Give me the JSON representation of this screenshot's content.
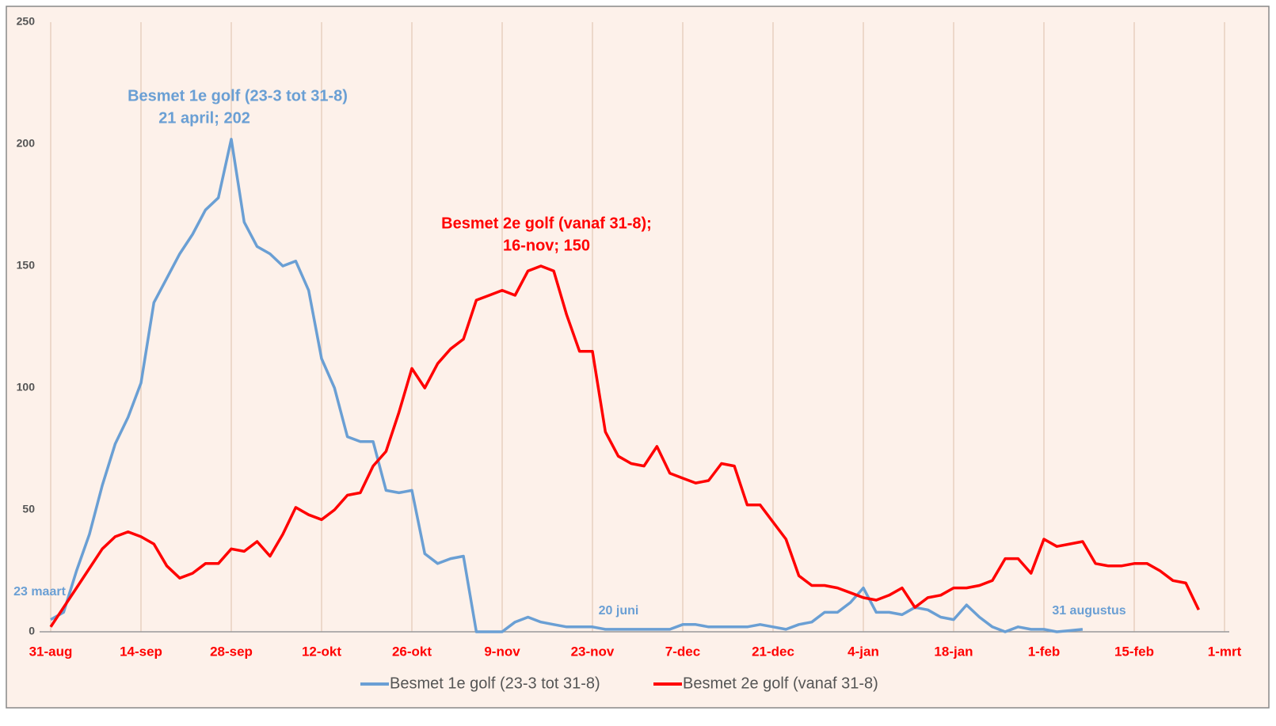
{
  "chart_data": {
    "type": "line",
    "categories": [
      "31-aug",
      null,
      null,
      null,
      null,
      null,
      null,
      "14-sep",
      null,
      null,
      null,
      null,
      null,
      null,
      "28-sep",
      null,
      null,
      null,
      null,
      null,
      null,
      "12-okt",
      null,
      null,
      null,
      null,
      null,
      null,
      "26-okt",
      null,
      null,
      null,
      null,
      null,
      null,
      "9-nov",
      null,
      null,
      null,
      null,
      null,
      null,
      "23-nov",
      null,
      null,
      null,
      null,
      null,
      null,
      "7-dec",
      null,
      null,
      null,
      null,
      null,
      null,
      "21-dec",
      null,
      null,
      null,
      null,
      null,
      null,
      "4-jan",
      null,
      null,
      null,
      null,
      null,
      null,
      "18-jan",
      null,
      null,
      null,
      null,
      null,
      null,
      "1-feb",
      null,
      null,
      null,
      null,
      null,
      null,
      "15-feb",
      null,
      null,
      null,
      null,
      null,
      null,
      "1-mrt"
    ],
    "series": [
      {
        "name": "Besmet 1e golf (23-3 tot 31-8)",
        "color": "#6a9fd4",
        "values": [
          5,
          8,
          25,
          40,
          60,
          77,
          88,
          102,
          135,
          145,
          155,
          163,
          173,
          178,
          202,
          168,
          158,
          155,
          150,
          152,
          140,
          112,
          100,
          80,
          78,
          78,
          58,
          57,
          58,
          32,
          28,
          30,
          31,
          0,
          0,
          0,
          4,
          6,
          4,
          3,
          2,
          2,
          2,
          1,
          1,
          1,
          1,
          1,
          1,
          3,
          3,
          2,
          2,
          2,
          2,
          3,
          2,
          1,
          3,
          4,
          8,
          8,
          12,
          18,
          8,
          8,
          7,
          10,
          9,
          6,
          5,
          11,
          6,
          2,
          0,
          2,
          1,
          1,
          0,
          0.5,
          1,
          null,
          null,
          null,
          null,
          null,
          null,
          null,
          null,
          null,
          null,
          null
        ]
      },
      {
        "name": "Besmet 2e golf (vanaf 31-8)",
        "color": "#ff0000",
        "values": [
          2,
          10,
          18,
          26,
          34,
          39,
          41,
          39,
          36,
          27,
          22,
          24,
          28,
          28,
          34,
          33,
          37,
          31,
          40,
          51,
          48,
          46,
          50,
          56,
          57,
          68,
          74,
          90,
          108,
          100,
          110,
          116,
          120,
          136,
          138,
          140,
          138,
          148,
          150,
          148,
          130,
          115,
          115,
          82,
          72,
          69,
          68,
          76,
          65,
          63,
          61,
          62,
          69,
          68,
          52,
          52,
          45,
          38,
          23,
          19,
          19,
          18,
          16,
          14,
          13,
          15,
          18,
          10,
          14,
          15,
          18,
          18,
          19,
          21,
          30,
          30,
          24,
          38,
          35,
          36,
          37,
          28,
          27,
          27,
          28,
          28,
          25,
          21,
          20,
          9,
          null,
          null
        ]
      }
    ],
    "ylim": [
      0,
      250
    ],
    "yticks": [
      0,
      50,
      100,
      150,
      200,
      250
    ],
    "annotations": [
      {
        "text": "Besmet 1e golf (23-3 tot 31-8)",
        "color": "#6a9fd4"
      },
      {
        "text": "21 april; 202",
        "color": "#6a9fd4"
      },
      {
        "text": "Besmet 2e golf (vanaf 31-8);",
        "color": "#ff0000"
      },
      {
        "text": "16-nov; 150",
        "color": "#ff0000"
      },
      {
        "text": "23 maart",
        "color": "#6a9fd4"
      },
      {
        "text": "20 juni",
        "color": "#6a9fd4"
      },
      {
        "text": "31 augustus",
        "color": "#6a9fd4"
      }
    ],
    "vgrid": true,
    "legend": "bottom"
  }
}
